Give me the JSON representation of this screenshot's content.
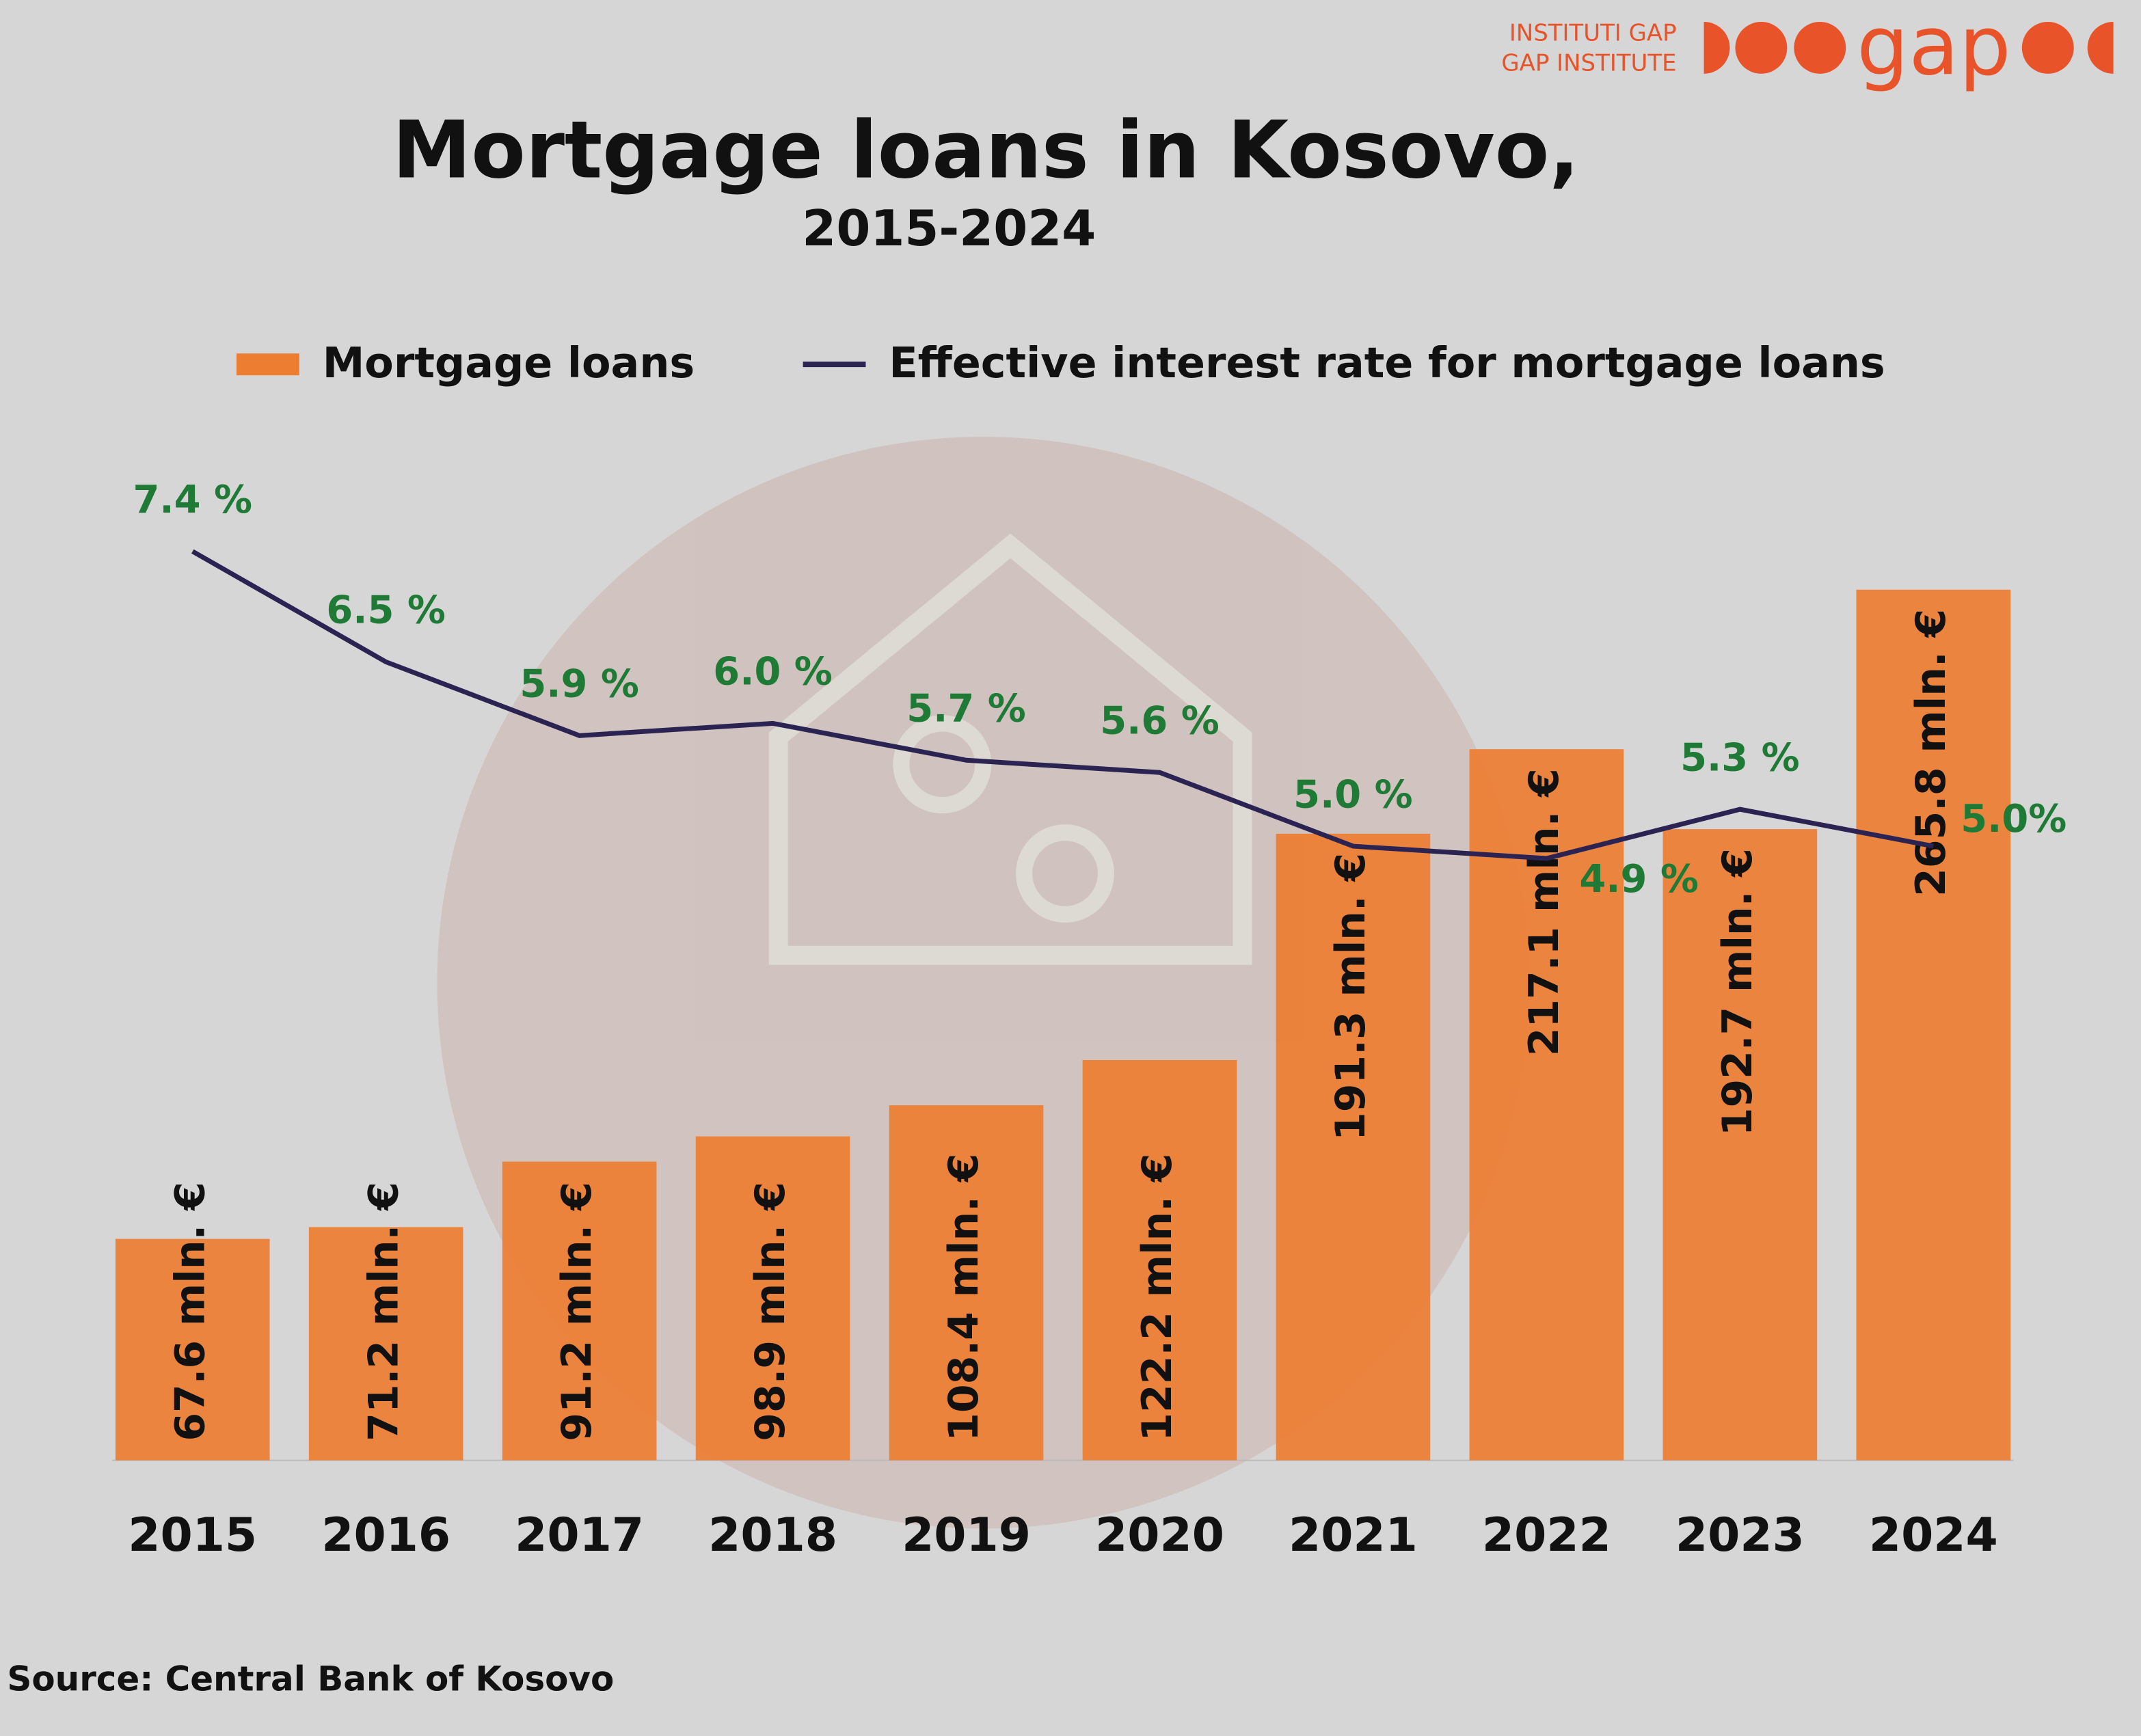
{
  "logo": {
    "line1": "INSTITUTI GAP",
    "line2": "GAP INSTITUTE",
    "wordmark": "gap"
  },
  "chart_data": {
    "type": "bar-line",
    "title": "Mortgage loans in Kosovo,",
    "subtitle": "2015-2024",
    "source": "Source: Central Bank of Kosovo",
    "categories": [
      "2015",
      "2016",
      "2017",
      "2018",
      "2019",
      "2020",
      "2021",
      "2022",
      "2023",
      "2024"
    ],
    "ylim": [
      0,
      450
    ],
    "y2lim": [
      0,
      12
    ],
    "series": [
      {
        "name": "Mortgage loans",
        "color": "#ed7d31",
        "type": "bar",
        "values": [
          67.6,
          71.2,
          91.2,
          98.9,
          108.4,
          122.2,
          191.3,
          217.1,
          192.7,
          265.8
        ],
        "value_labels": [
          "67.6 mln. €",
          "71.2 mln. €",
          "91.2 mln. €",
          "98.9 mln. €",
          "108.4 mln. €",
          "122.2 mln. €",
          "191.3 mln. €",
          "217.1 mln. €",
          "192.7 mln. €",
          "265.8 mln. €"
        ]
      },
      {
        "name": "Effective interest rate for mortgage loans",
        "color": "#2b2452",
        "type": "line",
        "axis": "y2",
        "label_color": "#1f7a36",
        "values": [
          7.4,
          6.5,
          5.9,
          6.0,
          5.7,
          5.6,
          5.0,
          4.9,
          5.3,
          5.0
        ],
        "value_labels": [
          "7.4 %",
          "6.5 %",
          "5.9 %",
          "6.0 %",
          "5.7 %",
          "5.6 %",
          "5.0 %",
          "4.9 %",
          "5.3 %",
          "5.0%"
        ]
      }
    ]
  }
}
